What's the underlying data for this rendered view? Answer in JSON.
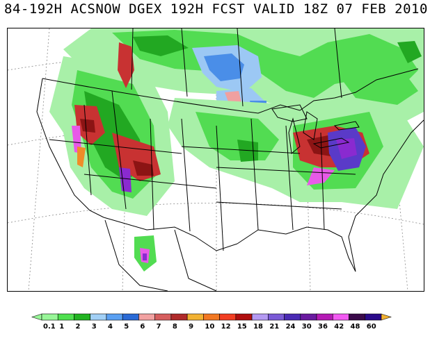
{
  "title": "84-192H ACSNOW DGEX 192H FCST VALID 18Z 07 FEB 2010",
  "legend": {
    "colors": [
      "#98f698",
      "#4fe04f",
      "#22b422",
      "#a2d0f6",
      "#5aa0f2",
      "#2a6ad6",
      "#f2a2a2",
      "#d65e5e",
      "#b02a2a",
      "#f2b232",
      "#f27822",
      "#f23e22",
      "#b00e0e",
      "#b49af2",
      "#7a5ad6",
      "#4a2ab4",
      "#6a1aa0",
      "#b41ab4",
      "#f25af2",
      "#3a0a4a",
      "#2a0a8a",
      "#2222f2",
      "#f28a22",
      "#f2b232"
    ],
    "ticks": [
      "0.1",
      "1",
      "2",
      "3",
      "4",
      "5",
      "6",
      "7",
      "8",
      "9",
      "10",
      "12",
      "15",
      "18",
      "21",
      "24",
      "30",
      "36",
      "42",
      "48",
      "60"
    ]
  },
  "map": {
    "snow_colors": {
      "light_green": "#a8f0a8",
      "mid_green": "#52dc52",
      "dark_green": "#22a822",
      "light_blue": "#9cc8f4",
      "blue": "#4a8ee8",
      "pink": "#f0a0a0",
      "red": "#c83232",
      "dark_red": "#8c1414",
      "orange": "#f08c28",
      "purple": "#8a2ad0",
      "magenta": "#e85ae8",
      "violet": "#5a3ac8"
    }
  }
}
